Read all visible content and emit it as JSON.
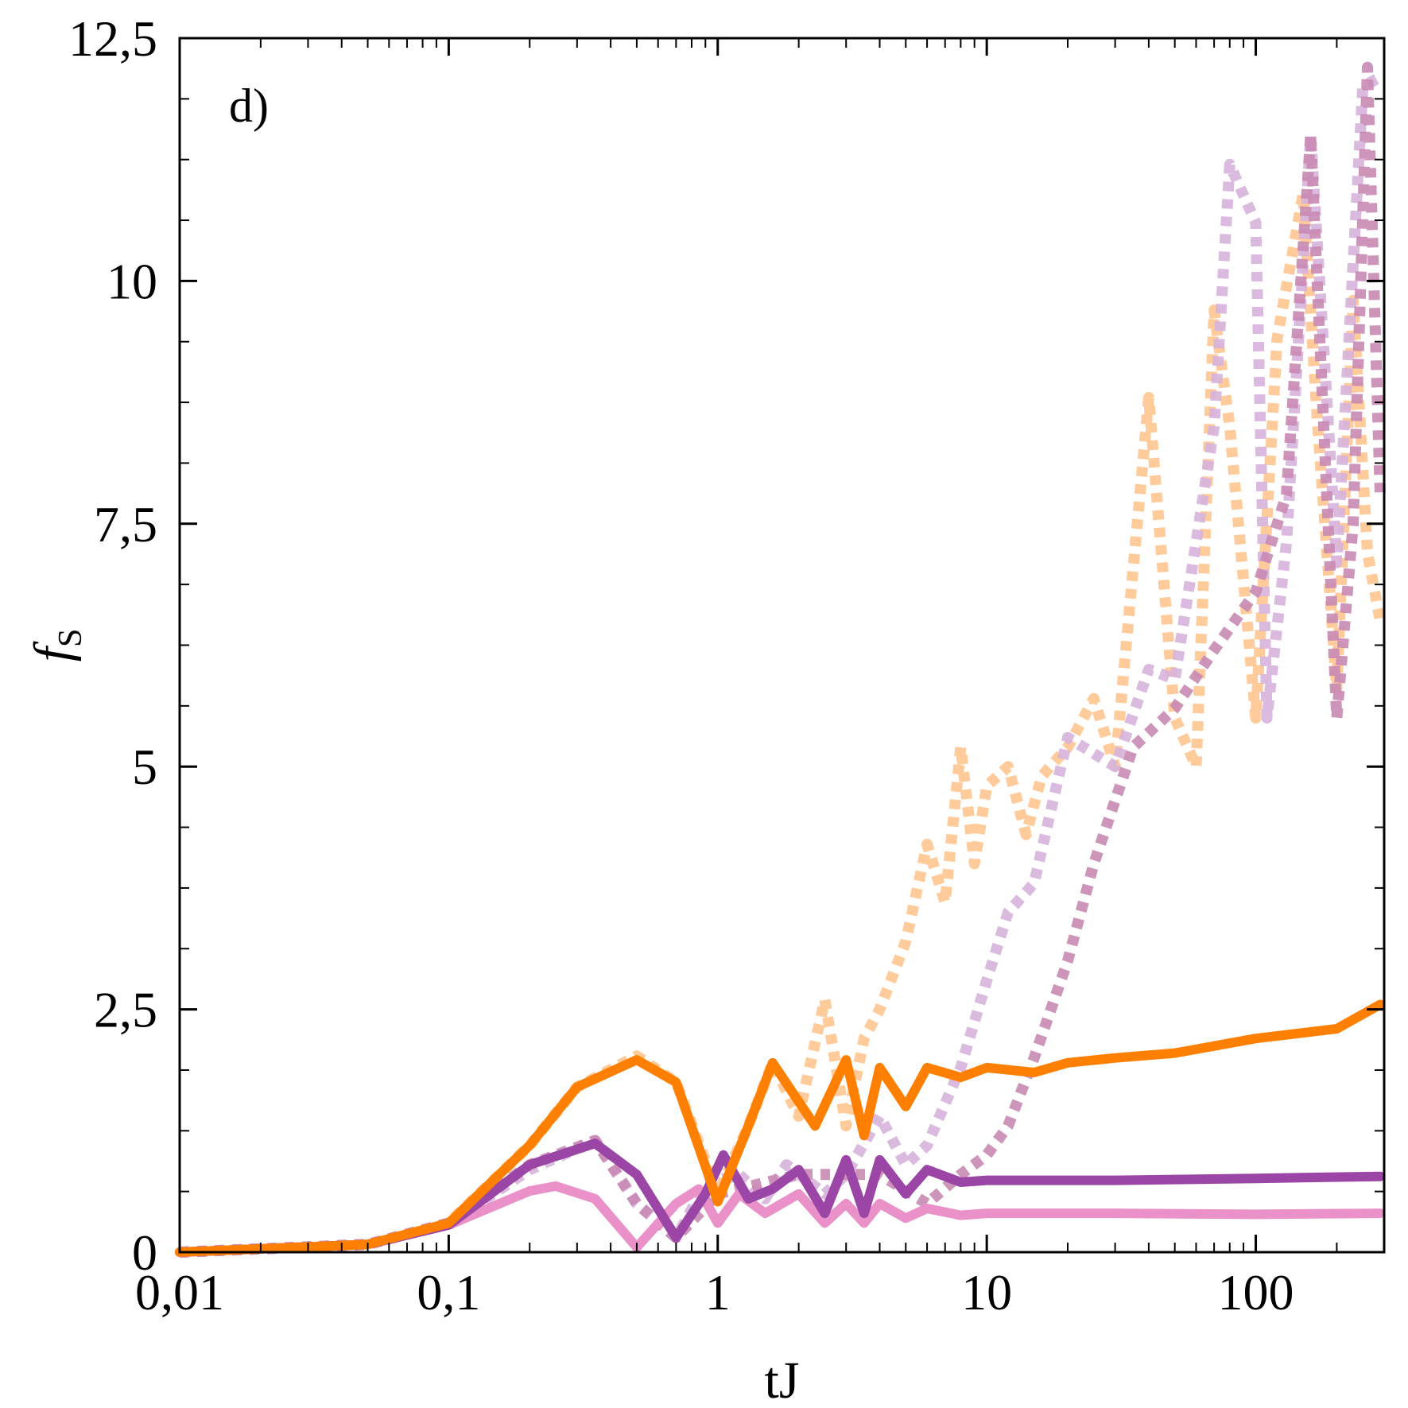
{
  "chart_data": {
    "type": "line",
    "panel_label": "d)",
    "xlabel": "tJ",
    "ylabel": "f",
    "ylabel_sub": "S",
    "x_scale": "log",
    "xlim": [
      0.01,
      300
    ],
    "ylim": [
      0,
      12.5
    ],
    "x_ticks": [
      {
        "value": 0.01,
        "label": "0,01"
      },
      {
        "value": 0.1,
        "label": "0,1"
      },
      {
        "value": 1,
        "label": "1"
      },
      {
        "value": 10,
        "label": "10"
      },
      {
        "value": 100,
        "label": "100"
      }
    ],
    "y_ticks": [
      {
        "value": 0,
        "label": "0"
      },
      {
        "value": 2.5,
        "label": "2,5"
      },
      {
        "value": 5,
        "label": "5"
      },
      {
        "value": 7.5,
        "label": "7,5"
      },
      {
        "value": 10,
        "label": "10"
      },
      {
        "value": 12.5,
        "label": "12,5"
      }
    ],
    "grid": false,
    "series": [
      {
        "color": "#ffc58f",
        "style": "dotted",
        "opacity": 0.9,
        "points": [
          [
            0.01,
            0.0
          ],
          [
            0.05,
            0.08
          ],
          [
            0.1,
            0.3
          ],
          [
            0.2,
            1.1
          ],
          [
            0.3,
            1.7
          ],
          [
            0.5,
            2.02
          ],
          [
            0.7,
            1.75
          ],
          [
            1.0,
            0.6
          ],
          [
            1.3,
            1.3
          ],
          [
            1.6,
            1.95
          ],
          [
            2.0,
            1.4
          ],
          [
            2.5,
            2.6
          ],
          [
            3.0,
            1.3
          ],
          [
            3.5,
            2.2
          ],
          [
            4.0,
            2.5
          ],
          [
            5.0,
            3.2
          ],
          [
            6.0,
            4.2
          ],
          [
            7.0,
            3.6
          ],
          [
            8.0,
            5.2
          ],
          [
            9.0,
            4.0
          ],
          [
            10.0,
            4.8
          ],
          [
            12.0,
            5.0
          ],
          [
            14.0,
            4.3
          ],
          [
            16.0,
            4.9
          ],
          [
            20.0,
            5.2
          ],
          [
            25.0,
            5.7
          ],
          [
            30.0,
            5.0
          ],
          [
            40.0,
            8.8
          ],
          [
            50.0,
            5.5
          ],
          [
            60.0,
            5.0
          ],
          [
            70.0,
            9.7
          ],
          [
            80.0,
            8.5
          ],
          [
            100.0,
            5.5
          ],
          [
            120.0,
            9.4
          ],
          [
            150.0,
            10.9
          ],
          [
            170.0,
            8.5
          ],
          [
            200.0,
            5.8
          ],
          [
            230.0,
            9.8
          ],
          [
            260.0,
            7.2
          ],
          [
            290.0,
            6.5
          ]
        ]
      },
      {
        "color": "#d7b3dc",
        "style": "dotted",
        "opacity": 0.9,
        "points": [
          [
            0.01,
            0.0
          ],
          [
            0.05,
            0.08
          ],
          [
            0.1,
            0.3
          ],
          [
            0.2,
            0.85
          ],
          [
            0.35,
            1.15
          ],
          [
            0.5,
            0.5
          ],
          [
            0.7,
            0.15
          ],
          [
            0.9,
            0.7
          ],
          [
            1.2,
            0.8
          ],
          [
            1.5,
            0.55
          ],
          [
            1.8,
            0.9
          ],
          [
            2.5,
            0.6
          ],
          [
            3.0,
            0.8
          ],
          [
            4.0,
            1.4
          ],
          [
            5.0,
            0.9
          ],
          [
            6.0,
            1.1
          ],
          [
            8.0,
            1.9
          ],
          [
            10.0,
            2.8
          ],
          [
            12.0,
            3.5
          ],
          [
            15.0,
            3.8
          ],
          [
            20.0,
            5.3
          ],
          [
            30.0,
            5.0
          ],
          [
            40.0,
            6.0
          ],
          [
            50.0,
            5.9
          ],
          [
            70.0,
            8.5
          ],
          [
            80.0,
            11.2
          ],
          [
            100.0,
            10.6
          ],
          [
            110.0,
            5.5
          ],
          [
            130.0,
            7.3
          ],
          [
            160.0,
            11.5
          ],
          [
            200.0,
            7.1
          ],
          [
            250.0,
            12.0
          ],
          [
            290.0,
            12.1
          ]
        ]
      },
      {
        "color": "#c98ab4",
        "style": "dotted",
        "opacity": 0.9,
        "points": [
          [
            0.01,
            0.0
          ],
          [
            0.05,
            0.08
          ],
          [
            0.1,
            0.3
          ],
          [
            0.2,
            0.9
          ],
          [
            0.35,
            1.15
          ],
          [
            0.5,
            0.5
          ],
          [
            0.7,
            0.15
          ],
          [
            1.0,
            0.6
          ],
          [
            2.0,
            0.8
          ],
          [
            4.0,
            0.8
          ],
          [
            6.0,
            0.5
          ],
          [
            8.0,
            0.8
          ],
          [
            10.0,
            1.0
          ],
          [
            12.0,
            1.3
          ],
          [
            15.0,
            2.0
          ],
          [
            20.0,
            3.0
          ],
          [
            25.0,
            4.0
          ],
          [
            35.0,
            5.2
          ],
          [
            50.0,
            5.6
          ],
          [
            70.0,
            6.2
          ],
          [
            100.0,
            6.8
          ],
          [
            130.0,
            7.8
          ],
          [
            160.0,
            11.5
          ],
          [
            200.0,
            5.5
          ],
          [
            230.0,
            7.5
          ],
          [
            260.0,
            12.2
          ],
          [
            290.0,
            7.8
          ]
        ]
      },
      {
        "color": "#e991c8",
        "style": "solid",
        "opacity": 1,
        "points": [
          [
            0.01,
            0.0
          ],
          [
            0.05,
            0.08
          ],
          [
            0.1,
            0.28
          ],
          [
            0.2,
            0.63
          ],
          [
            0.25,
            0.68
          ],
          [
            0.35,
            0.55
          ],
          [
            0.5,
            0.05
          ],
          [
            0.7,
            0.5
          ],
          [
            0.85,
            0.65
          ],
          [
            1.0,
            0.3
          ],
          [
            1.2,
            0.6
          ],
          [
            1.5,
            0.4
          ],
          [
            2.0,
            0.6
          ],
          [
            2.5,
            0.3
          ],
          [
            3.0,
            0.5
          ],
          [
            3.5,
            0.3
          ],
          [
            4.0,
            0.5
          ],
          [
            5.0,
            0.35
          ],
          [
            6.0,
            0.45
          ],
          [
            8.0,
            0.38
          ],
          [
            10.0,
            0.4
          ],
          [
            30.0,
            0.4
          ],
          [
            100.0,
            0.39
          ],
          [
            290.0,
            0.4
          ]
        ]
      },
      {
        "color": "#9b46a6",
        "style": "solid",
        "opacity": 1,
        "points": [
          [
            0.01,
            0.0
          ],
          [
            0.05,
            0.08
          ],
          [
            0.1,
            0.28
          ],
          [
            0.2,
            0.9
          ],
          [
            0.35,
            1.12
          ],
          [
            0.5,
            0.8
          ],
          [
            0.7,
            0.15
          ],
          [
            0.9,
            0.6
          ],
          [
            1.05,
            1.0
          ],
          [
            1.3,
            0.55
          ],
          [
            1.6,
            0.65
          ],
          [
            2.0,
            0.85
          ],
          [
            2.5,
            0.4
          ],
          [
            3.0,
            0.95
          ],
          [
            3.5,
            0.4
          ],
          [
            4.0,
            0.95
          ],
          [
            5.0,
            0.6
          ],
          [
            6.0,
            0.85
          ],
          [
            8.0,
            0.72
          ],
          [
            10.0,
            0.74
          ],
          [
            30.0,
            0.74
          ],
          [
            100.0,
            0.76
          ],
          [
            290.0,
            0.78
          ]
        ]
      },
      {
        "color": "#ff7f00",
        "style": "solid",
        "opacity": 1,
        "points": [
          [
            0.01,
            0.0
          ],
          [
            0.05,
            0.08
          ],
          [
            0.1,
            0.3
          ],
          [
            0.2,
            1.1
          ],
          [
            0.3,
            1.7
          ],
          [
            0.5,
            1.98
          ],
          [
            0.7,
            1.75
          ],
          [
            1.0,
            0.52
          ],
          [
            1.3,
            1.3
          ],
          [
            1.6,
            1.95
          ],
          [
            2.0,
            1.55
          ],
          [
            2.3,
            1.3
          ],
          [
            3.0,
            1.98
          ],
          [
            3.5,
            1.2
          ],
          [
            4.0,
            1.9
          ],
          [
            5.0,
            1.5
          ],
          [
            6.0,
            1.9
          ],
          [
            8.0,
            1.8
          ],
          [
            10.0,
            1.9
          ],
          [
            15.0,
            1.85
          ],
          [
            20.0,
            1.95
          ],
          [
            30.0,
            2.0
          ],
          [
            50.0,
            2.05
          ],
          [
            100.0,
            2.2
          ],
          [
            200.0,
            2.3
          ],
          [
            290.0,
            2.55
          ]
        ]
      }
    ]
  }
}
